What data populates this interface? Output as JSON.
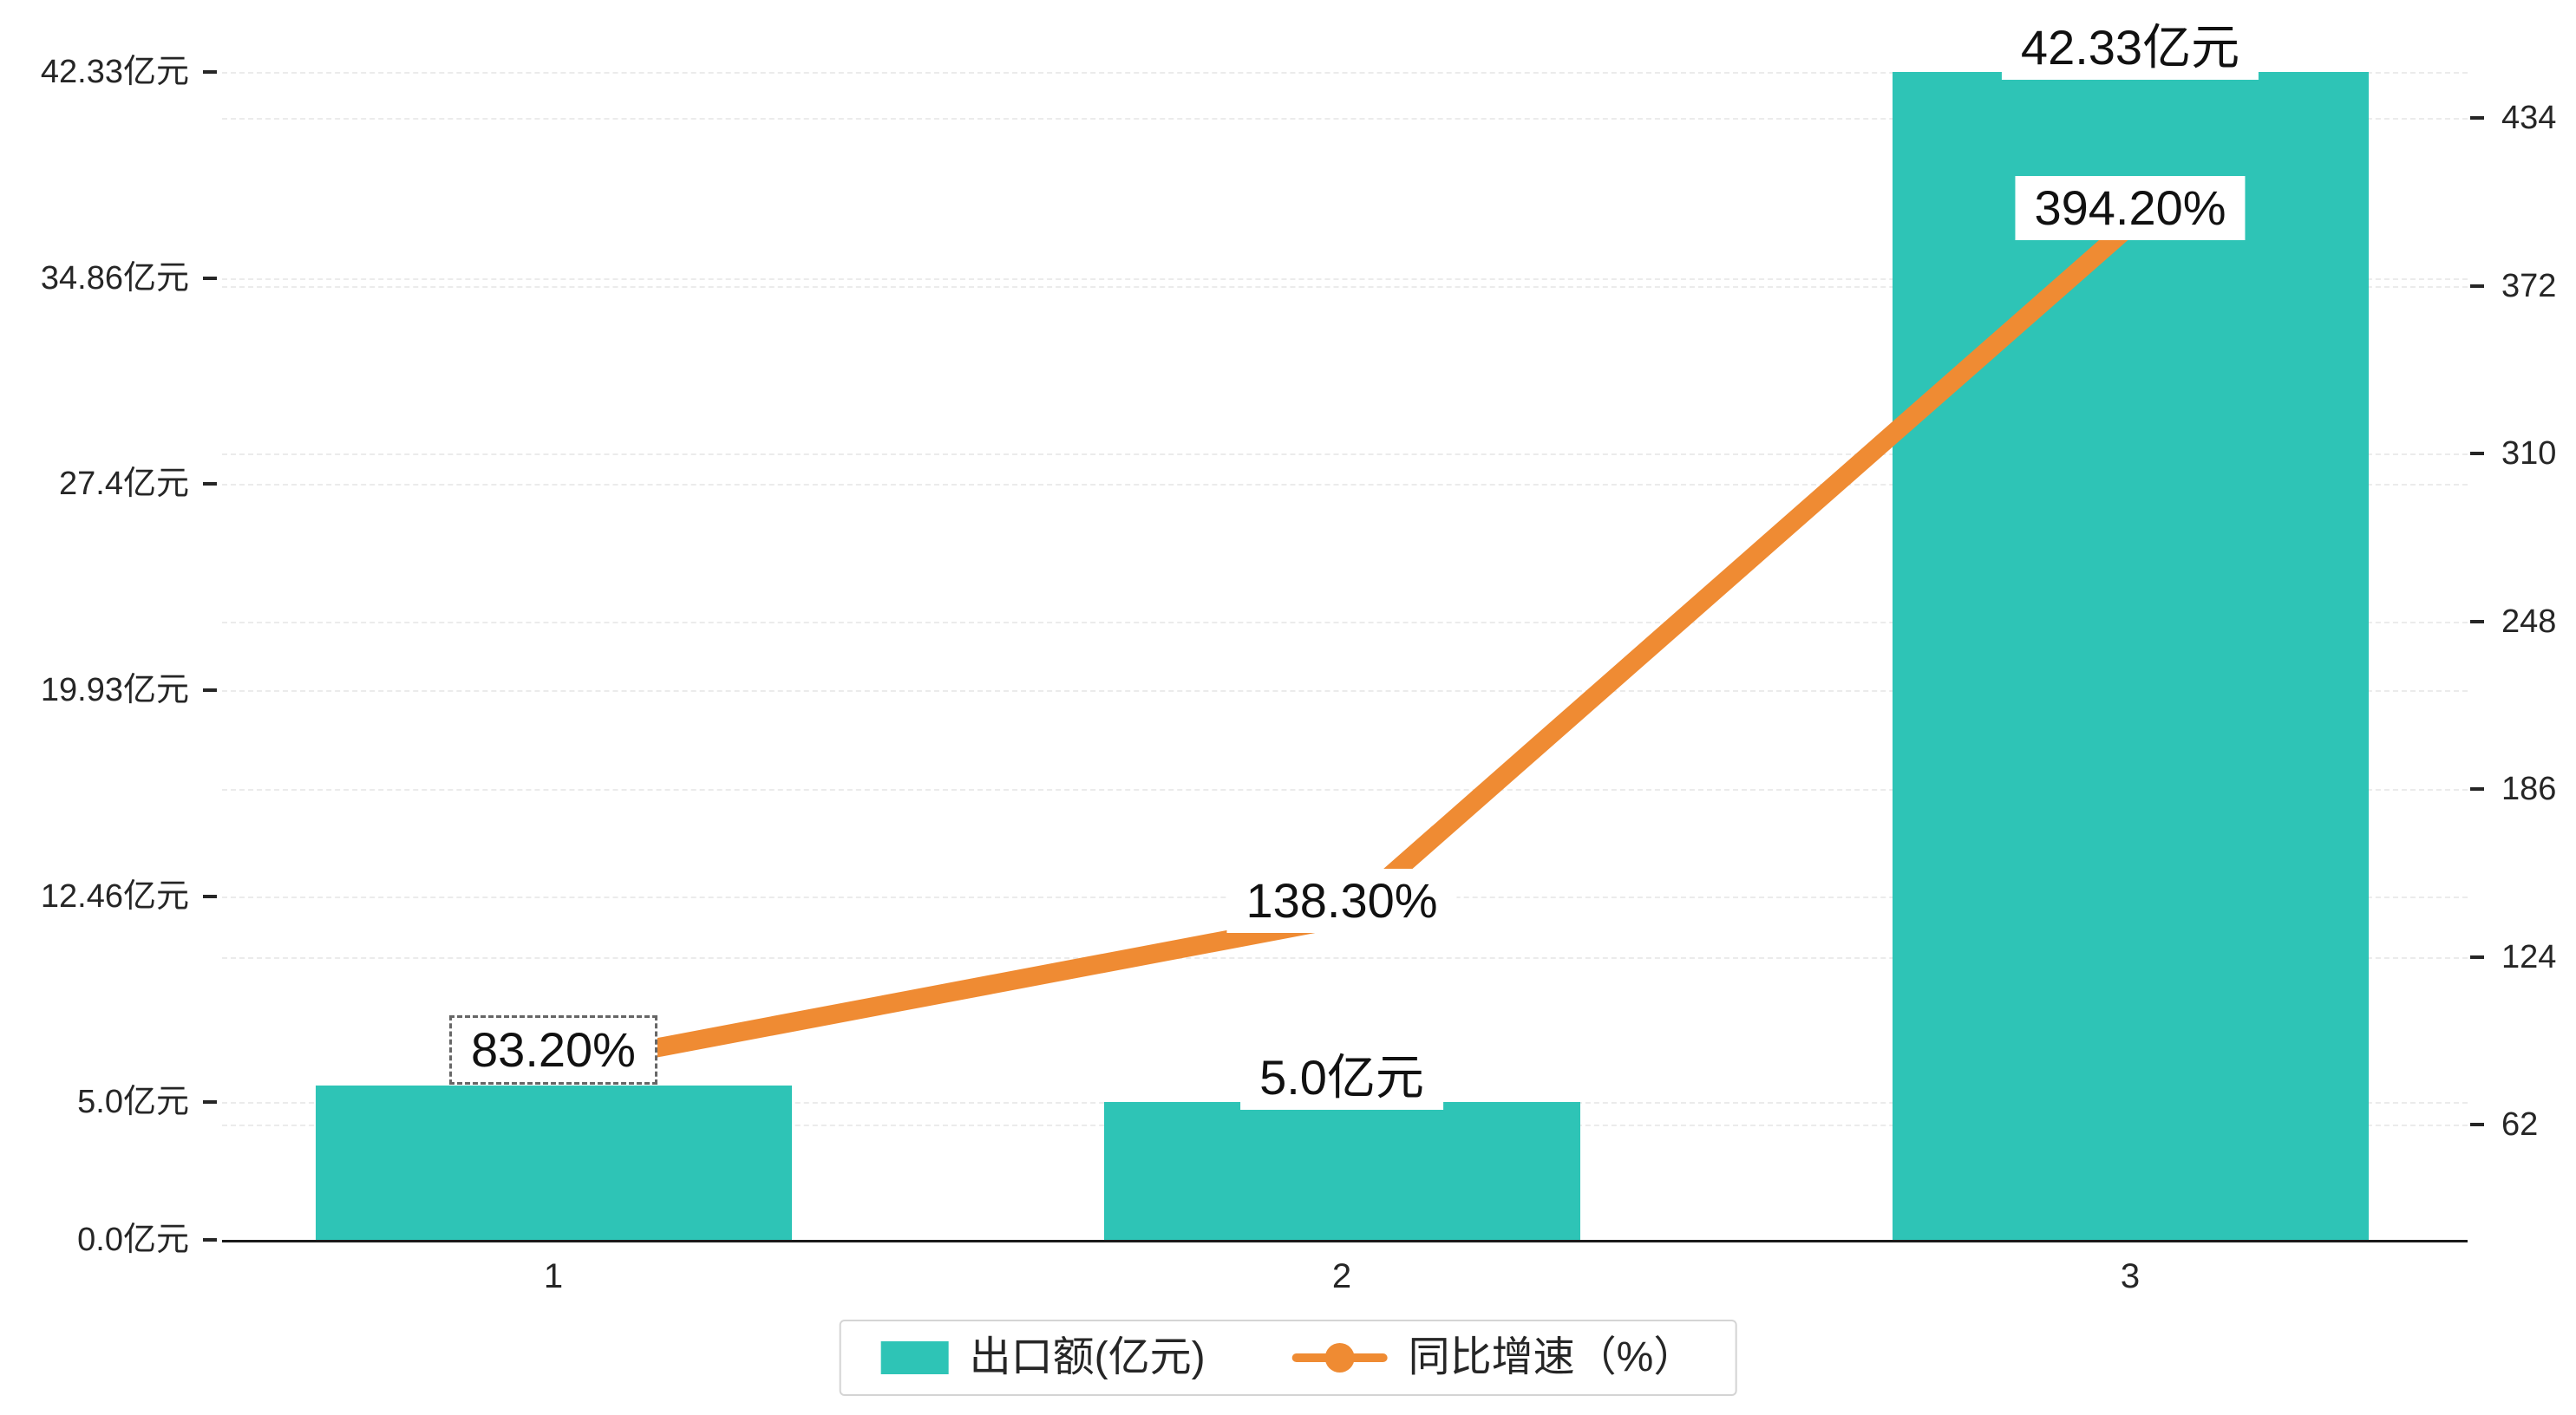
{
  "chart_data": {
    "type": "bar",
    "subtype": "bar-line-combo",
    "categories": [
      "1",
      "2",
      "3"
    ],
    "series": [
      {
        "name": "出口额(亿元)",
        "type": "bar",
        "axis": "left",
        "color": "#2ec4b6",
        "values": [
          5.6,
          5.0,
          42.33
        ],
        "labels": [
          "",
          "5.0亿元",
          "42.33亿元"
        ]
      },
      {
        "name": "同比增速（%）",
        "type": "line",
        "axis": "right",
        "color": "#ef8b33",
        "values": [
          83.2,
          138.3,
          394.2
        ],
        "labels": [
          "83.20%",
          "138.30%",
          "394.20%"
        ]
      }
    ],
    "left_axis": {
      "unit": "亿元",
      "min": 0,
      "max": 42.33,
      "tick_values": [
        0,
        5.0,
        12.46,
        19.93,
        27.4,
        34.86,
        42.33
      ],
      "tick_labels": [
        "0.0亿元",
        "5.0亿元",
        "12.46亿元",
        "19.93亿元",
        "27.4亿元",
        "34.86亿元",
        "42.33亿元"
      ]
    },
    "right_axis": {
      "unit": "%",
      "tick_values": [
        62,
        124,
        186,
        248,
        310,
        372,
        434
      ],
      "tick_labels": [
        "62",
        "124",
        "186",
        "248",
        "310",
        "372",
        "434"
      ]
    },
    "grid": "dashed-horizontal",
    "legend_position": "bottom-center",
    "title": ""
  },
  "legend": {
    "bar_label": "出口额(亿元)",
    "line_label": "同比增速（%）"
  },
  "colors": {
    "bar": "#2ec4b6",
    "line": "#ef8b33",
    "axis_text": "#262626",
    "grid": "#ebebeb",
    "background": "#ffffff"
  }
}
